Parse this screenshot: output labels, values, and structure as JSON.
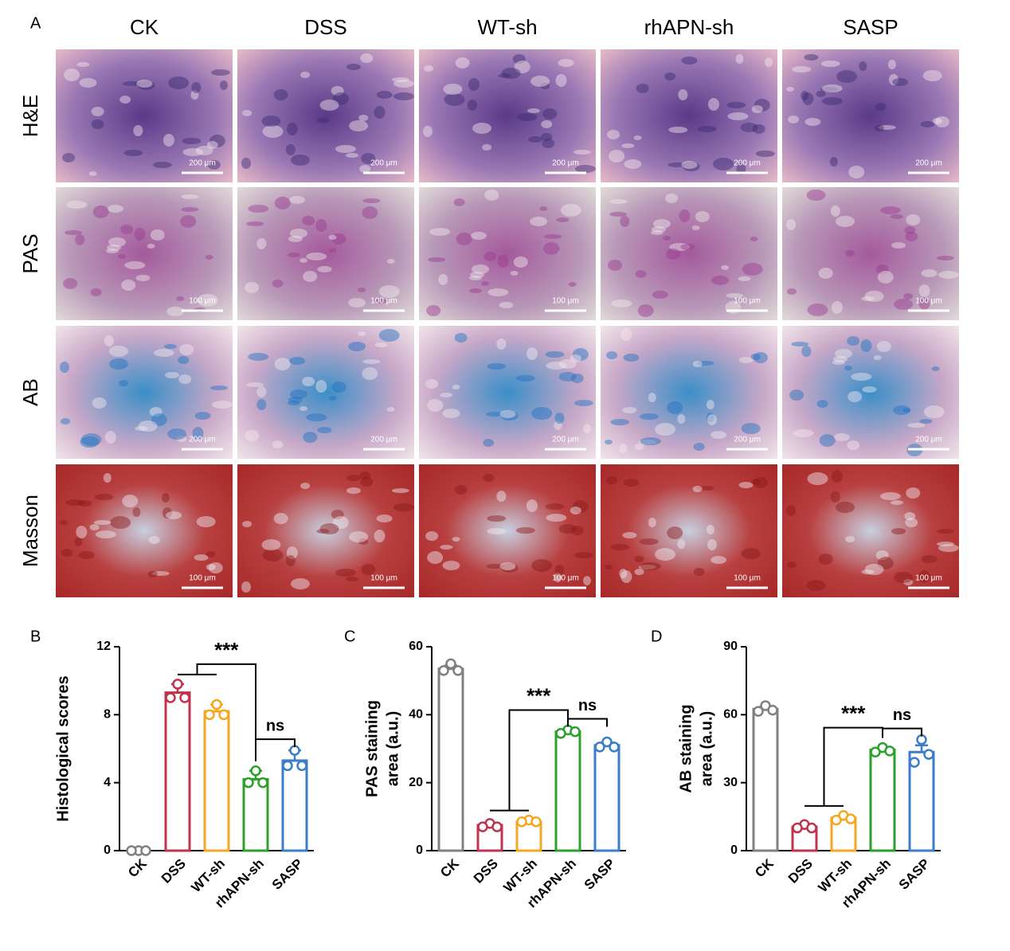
{
  "panel_a": {
    "label": "A",
    "columns": [
      "CK",
      "DSS",
      "WT-sh",
      "rhAPN-sh",
      "SASP"
    ],
    "rows": [
      {
        "stain": "H&E",
        "scale_bars": [
          "200 μm",
          "200 μm",
          "200 μm",
          "200 μm",
          "200 μm"
        ]
      },
      {
        "stain": "PAS",
        "scale_bars": [
          "100 μm",
          "100 μm",
          "100 μm",
          "100 μm",
          "100 μm"
        ]
      },
      {
        "stain": "AB",
        "scale_bars": [
          "200 μm",
          "200 μm",
          "200 μm",
          "200 μm",
          "200 μm"
        ]
      },
      {
        "stain": "Masson",
        "scale_bars": [
          "100 μm",
          "100 μm",
          "100 μm",
          "100 μm",
          "100 μm"
        ]
      }
    ]
  },
  "chart_data": [
    {
      "type": "bar",
      "panel": "B",
      "y_label": "Histological scores",
      "categories": [
        "CK",
        "DSS",
        "WT-sh",
        "rhAPN-sh",
        "SASP"
      ],
      "colors": [
        "#808080",
        "#c0334d",
        "#f5a623",
        "#2ca02c",
        "#3a7dc9"
      ],
      "values": [
        0,
        9.3,
        8.2,
        4.2,
        5.3
      ],
      "errors": [
        0,
        0.5,
        0.4,
        0.5,
        0.6
      ],
      "points": [
        [
          0,
          0,
          0
        ],
        [
          9.8,
          9.0,
          9.0
        ],
        [
          8.6,
          8.0,
          8.0
        ],
        [
          4.7,
          4.0,
          4.0
        ],
        [
          5.9,
          5.0,
          5.0
        ]
      ],
      "ylim": [
        0,
        12
      ],
      "yticks": [
        0,
        4,
        8,
        12
      ],
      "annotations": [
        "***",
        "ns"
      ]
    },
    {
      "type": "bar",
      "panel": "C",
      "y_label": [
        "PAS staining",
        "area (a.u.)"
      ],
      "categories": [
        "CK",
        "DSS",
        "WT-sh",
        "rhAPN-sh",
        "SASP"
      ],
      "colors": [
        "#808080",
        "#c0334d",
        "#f5a623",
        "#2ca02c",
        "#3a7dc9"
      ],
      "values": [
        53.5,
        7.5,
        8.5,
        35,
        31
      ],
      "errors": [
        1,
        0.5,
        0.3,
        0.5,
        0.8
      ],
      "points": [
        [
          55,
          53,
          53
        ],
        [
          8,
          7,
          7
        ],
        [
          9,
          8.5,
          8.5
        ],
        [
          35.5,
          34.5,
          35
        ],
        [
          32,
          30.5,
          30.5
        ]
      ],
      "ylim": [
        0,
        60
      ],
      "yticks": [
        0,
        20,
        40,
        60
      ],
      "annotations": [
        "***",
        "ns"
      ]
    },
    {
      "type": "bar",
      "panel": "D",
      "y_label": [
        "AB staining",
        "area (a.u.)"
      ],
      "categories": [
        "CK",
        "DSS",
        "WT-sh",
        "rhAPN-sh",
        "SASP"
      ],
      "colors": [
        "#808080",
        "#c0334d",
        "#f5a623",
        "#2ca02c",
        "#3a7dc9"
      ],
      "values": [
        62.5,
        10.5,
        14.5,
        44.5,
        43.5
      ],
      "errors": [
        1,
        0.7,
        0.8,
        0.8,
        3
      ],
      "points": [
        [
          64,
          61.5,
          62
        ],
        [
          11.5,
          10,
          10
        ],
        [
          15.5,
          13.5,
          14
        ],
        [
          45.5,
          43.5,
          44
        ],
        [
          49,
          39,
          42.5
        ]
      ],
      "ylim": [
        0,
        90
      ],
      "yticks": [
        0,
        30,
        60,
        90
      ],
      "annotations": [
        "***",
        "ns"
      ]
    }
  ]
}
